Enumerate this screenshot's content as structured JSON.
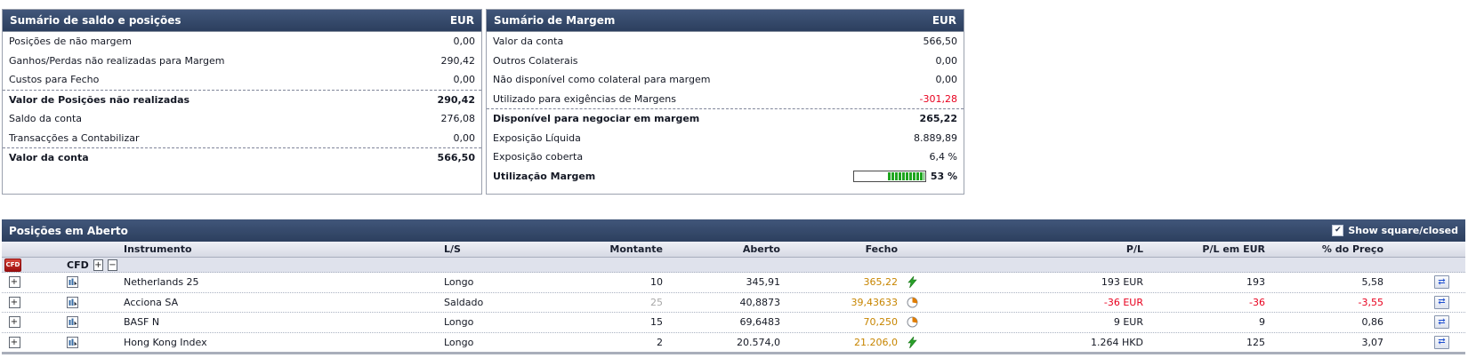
{
  "colors": {
    "header_bar": "#2c3f5e",
    "accent_orange": "#c78500",
    "negative_red": "#e8001e",
    "live_green": "#2aa02a",
    "delayed_orange": "#e07d00",
    "badge_red": "#b81414"
  },
  "icons": {
    "plus": "+",
    "minus": "−",
    "check": "✔",
    "swap_arrows": "⇄"
  },
  "balance_panel": {
    "title": "Sumário de saldo e posições",
    "currency": "EUR",
    "rows": [
      {
        "label": "Posições de não margem",
        "value": "0,00"
      },
      {
        "label": "Ganhos/Perdas não realizadas para Margem",
        "value": "290,42"
      },
      {
        "label": "Custos para Fecho",
        "value": "0,00"
      },
      {
        "label": "Valor de Posições não realizadas",
        "value": "290,42"
      },
      {
        "label": "Saldo da conta",
        "value": "276,08"
      },
      {
        "label": "Transacções a Contabilizar",
        "value": "0,00"
      },
      {
        "label": "Valor da conta",
        "value": "566,50"
      }
    ]
  },
  "margin_panel": {
    "title": "Sumário de Margem",
    "currency": "EUR",
    "rows": [
      {
        "label": "Valor da conta",
        "value": "566,50"
      },
      {
        "label": "Outros Colaterais",
        "value": "0,00"
      },
      {
        "label": "Não disponível como colateral para margem",
        "value": "0,00"
      },
      {
        "label": "Utilizado para exigências de Margens",
        "value": "-301,28"
      },
      {
        "label": "Disponível para negociar em margem",
        "value": "265,22"
      },
      {
        "label": "Exposição Líquida",
        "value": "8.889,89"
      },
      {
        "label": "Exposição coberta",
        "value": "6,4 %"
      }
    ],
    "utilization": {
      "label": "Utilização Margem",
      "value": "53 %",
      "percent": 53
    }
  },
  "positions": {
    "title": "Posições em Aberto",
    "show_filter": {
      "label": "Show square/closed",
      "checked": true
    },
    "columns": {
      "instrument": "Instrumento",
      "ls": "L/S",
      "amount": "Montante",
      "open": "Aberto",
      "close": "Fecho",
      "pl": "P/L",
      "pl_eur": "P/L em EUR",
      "pct": "% do Preço"
    },
    "group": {
      "badge": "CFD",
      "label": "CFD"
    },
    "rows": [
      {
        "instrument": "Netherlands 25",
        "ls": "Longo",
        "amount": "10",
        "open": "345,91",
        "close": "365,22",
        "price_icon": "live",
        "pl": "193 EUR",
        "pl_eur": "193",
        "pct": "5,58"
      },
      {
        "instrument": "Acciona SA",
        "ls": "Saldado",
        "amount": "25",
        "open": "40,8873",
        "close": "39,43633",
        "price_icon": "delayed",
        "pl": "-36 EUR",
        "pl_eur": "-36",
        "pct": "-3,55"
      },
      {
        "instrument": "BASF N",
        "ls": "Longo",
        "amount": "15",
        "open": "69,6483",
        "close": "70,250",
        "price_icon": "delayed",
        "pl": "9 EUR",
        "pl_eur": "9",
        "pct": "0,86"
      },
      {
        "instrument": "Hong Kong Index",
        "ls": "Longo",
        "amount": "2",
        "open": "20.574,0",
        "close": "21.206,0",
        "price_icon": "live",
        "pl": "1.264 HKD",
        "pl_eur": "125",
        "pct": "3,07"
      }
    ]
  }
}
